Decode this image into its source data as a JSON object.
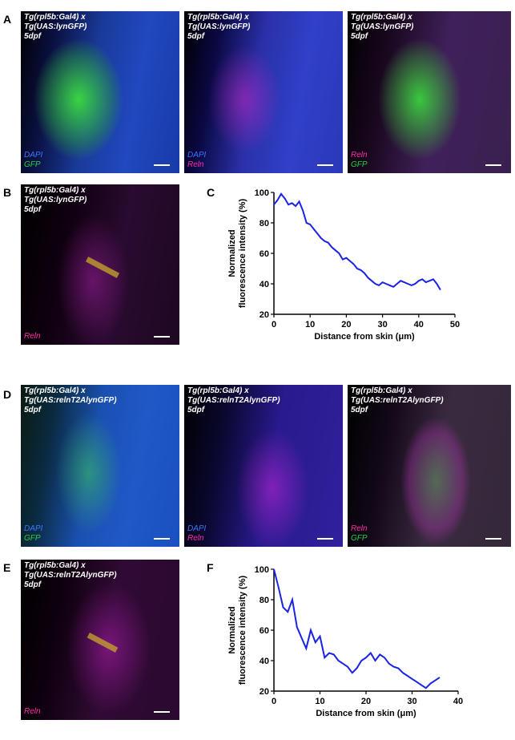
{
  "panels": {
    "A": {
      "label": "A",
      "images": [
        {
          "caption": "Tg(rpl5b:Gal4) x\nTg(UAS:lynGFP)\n5dpf",
          "legend": [
            "DAPI",
            "GFP"
          ]
        },
        {
          "caption": "Tg(rpl5b:Gal4) x\nTg(UAS:lynGFP)\n5dpf",
          "legend": [
            "DAPI",
            "Reln"
          ]
        },
        {
          "caption": "Tg(rpl5b:Gal4) x\nTg(UAS:lynGFP)\n5dpf",
          "legend": [
            "Reln",
            "GFP"
          ]
        }
      ]
    },
    "B": {
      "label": "B",
      "caption": "Tg(rpl5b:Gal4) x\nTg(UAS:lynGFP)\n5dpf",
      "legend": [
        "Reln"
      ]
    },
    "C": {
      "label": "C"
    },
    "D": {
      "label": "D",
      "images": [
        {
          "caption": "Tg(rpl5b:Gal4) x\nTg(UAS:relnT2AlynGFP)\n5dpf",
          "legend": [
            "DAPI",
            "GFP"
          ]
        },
        {
          "caption": "Tg(rpl5b:Gal4) x\nTg(UAS:relnT2AlynGFP)\n5dpf",
          "legend": [
            "DAPI",
            "Reln"
          ]
        },
        {
          "caption": "Tg(rpl5b:Gal4) x\nTg(UAS:relnT2AlynGFP)\n5dpf",
          "legend": [
            "Reln",
            "GFP"
          ]
        }
      ]
    },
    "E": {
      "label": "E",
      "caption": "Tg(rpl5b:Gal4) x\nTg(UAS:relnT2AlynGFP)\n5dpf",
      "legend": [
        "Reln"
      ]
    },
    "F": {
      "label": "F"
    }
  },
  "colors": {
    "DAPI": "#3a78ff",
    "GFP": "#2ecc40",
    "Reln": "#ff2fa8",
    "line": "#1a22e6"
  },
  "chart_data": [
    {
      "type": "line",
      "title": "",
      "xlabel": "Distance from skin (μm)",
      "ylabel": "Normalized fluorescence intensity (%)",
      "xlim": [
        0,
        50
      ],
      "ylim": [
        20,
        100
      ],
      "xticks": [
        0,
        10,
        20,
        30,
        40,
        50
      ],
      "yticks": [
        20,
        40,
        60,
        80,
        100
      ],
      "x": [
        0,
        1,
        2,
        3,
        4,
        5,
        6,
        7,
        8,
        9,
        10,
        11,
        12,
        13,
        14,
        15,
        16,
        17,
        18,
        19,
        20,
        21,
        22,
        23,
        24,
        25,
        26,
        27,
        28,
        29,
        30,
        31,
        32,
        33,
        34,
        35,
        36,
        37,
        38,
        39,
        40,
        41,
        42,
        43,
        44,
        45,
        46
      ],
      "y": [
        92,
        95,
        99,
        96,
        92,
        93,
        91,
        94,
        88,
        80,
        79,
        76,
        73,
        70,
        68,
        67,
        64,
        62,
        60,
        56,
        57,
        55,
        53,
        50,
        49,
        47,
        44,
        42,
        40,
        39,
        41,
        40,
        39,
        38,
        40,
        42,
        41,
        40,
        39,
        40,
        42,
        43,
        41,
        42,
        43,
        40,
        36
      ]
    },
    {
      "type": "line",
      "title": "",
      "xlabel": "Distance from skin (μm)",
      "ylabel": "Normalized fluorescence intensity (%)",
      "xlim": [
        0,
        40
      ],
      "ylim": [
        20,
        100
      ],
      "xticks": [
        0,
        10,
        20,
        30,
        40
      ],
      "yticks": [
        20,
        40,
        60,
        80,
        100
      ],
      "x": [
        0,
        1,
        2,
        3,
        4,
        5,
        6,
        7,
        8,
        9,
        10,
        11,
        12,
        13,
        14,
        15,
        16,
        17,
        18,
        19,
        20,
        21,
        22,
        23,
        24,
        25,
        26,
        27,
        28,
        29,
        30,
        31,
        32,
        33,
        34,
        35,
        36
      ],
      "y": [
        100,
        88,
        75,
        72,
        80,
        62,
        55,
        48,
        60,
        52,
        56,
        42,
        45,
        44,
        40,
        38,
        36,
        32,
        35,
        40,
        42,
        45,
        40,
        44,
        42,
        38,
        36,
        35,
        32,
        30,
        28,
        26,
        24,
        22,
        25,
        27,
        29
      ]
    }
  ]
}
